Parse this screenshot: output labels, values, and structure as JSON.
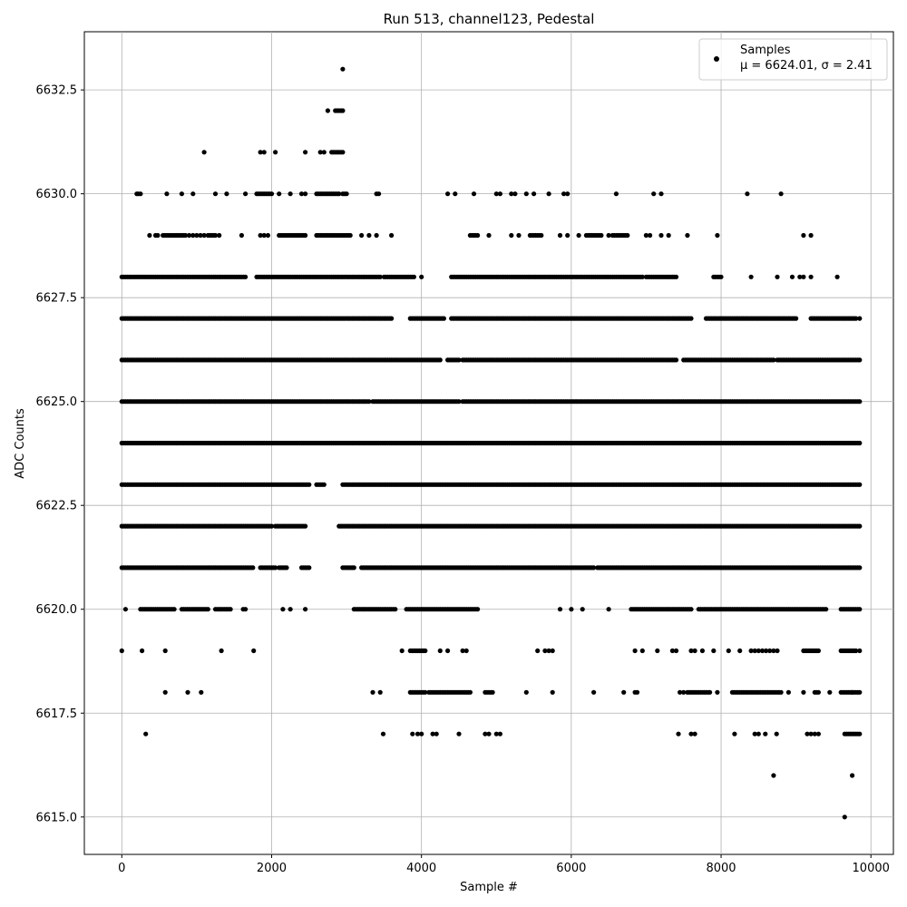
{
  "chart_data": {
    "type": "scatter",
    "title": "Run 513, channel123, Pedestal",
    "xlabel": "Sample #",
    "ylabel": "ADC Counts",
    "xlim": [
      -500,
      10300
    ],
    "ylim": [
      6614.1,
      6633.9
    ],
    "x_ticks": [
      0,
      2000,
      4000,
      6000,
      8000,
      10000
    ],
    "x_tick_labels": [
      "0",
      "2000",
      "4000",
      "6000",
      "8000",
      "10000"
    ],
    "y_ticks": [
      6615.0,
      6617.5,
      6620.0,
      6622.5,
      6625.0,
      6627.5,
      6630.0,
      6632.5
    ],
    "y_tick_labels": [
      "6615.0",
      "6617.5",
      "6620.0",
      "6622.5",
      "6625.0",
      "6627.5",
      "6630.0",
      "6632.5"
    ],
    "grid": true,
    "legend": {
      "position": "top-right",
      "entries": [
        "Samples",
        "μ = 6624.01, σ = 2.41"
      ]
    },
    "series": [
      {
        "name": "Samples",
        "color": "#000000",
        "levels": [
          {
            "y": 6628,
            "segments": [
              [
                0,
                1650
              ],
              [
                1800,
                3450
              ],
              [
                3500,
                3900
              ],
              [
                4400,
                6950
              ],
              [
                7000,
                7400
              ],
              [
                7900,
                8000
              ]
            ],
            "points": [
              4000,
              8400,
              8750,
              8950,
              9050,
              9100,
              9200,
              9550
            ]
          },
          {
            "y": 6627,
            "segments": [
              [
                0,
                3600
              ],
              [
                3850,
                4300
              ],
              [
                4400,
                7600
              ],
              [
                7800,
                9000
              ],
              [
                9200,
                9800
              ]
            ],
            "points": [
              9850
            ]
          },
          {
            "y": 6626,
            "segments": [
              [
                0,
                4250
              ],
              [
                4350,
                4500
              ],
              [
                4550,
                7400
              ],
              [
                7500,
                8700
              ],
              [
                8750,
                9850
              ]
            ],
            "points": []
          },
          {
            "y": 6625,
            "segments": [
              [
                0,
                3300
              ],
              [
                3350,
                4500
              ],
              [
                4550,
                9850
              ]
            ],
            "points": []
          },
          {
            "y": 6624,
            "segments": [
              [
                0,
                9850
              ]
            ],
            "points": []
          },
          {
            "y": 6623,
            "segments": [
              [
                0,
                2500
              ],
              [
                2600,
                2700
              ],
              [
                2950,
                9850
              ]
            ],
            "points": []
          },
          {
            "y": 6622,
            "segments": [
              [
                0,
                2000
              ],
              [
                2050,
                2450
              ],
              [
                2900,
                9850
              ]
            ],
            "points": []
          },
          {
            "y": 6621,
            "segments": [
              [
                0,
                1750
              ],
              [
                1850,
                2050
              ],
              [
                2100,
                2200
              ],
              [
                2400,
                2500
              ],
              [
                2950,
                3100
              ],
              [
                3200,
                6300
              ],
              [
                6350,
                9850
              ]
            ],
            "points": []
          },
          {
            "y": 6620,
            "segments": [
              [
                250,
                700
              ],
              [
                800,
                1150
              ],
              [
                1250,
                1450
              ],
              [
                3100,
                3650
              ],
              [
                3800,
                4750
              ],
              [
                6800,
                7600
              ],
              [
                7700,
                9400
              ],
              [
                9600,
                9850
              ]
            ],
            "points": [
              50,
              1620,
              1650,
              2150,
              2250,
              2450,
              5850,
              6000,
              6150,
              6500
            ]
          },
          {
            "y": 6619,
            "segments": [
              [
                3850,
                4050
              ],
              [
                9100,
                9300
              ],
              [
                9600,
                9800
              ]
            ],
            "points": [
              0,
              270,
              580,
              1330,
              1760,
              3740,
              4250,
              4350,
              4550,
              4600,
              5550,
              5650,
              5700,
              5750,
              6850,
              6950,
              7150,
              7350,
              7400,
              7600,
              7650,
              7750,
              7900,
              8100,
              8250,
              8400,
              8450,
              8500,
              8550,
              8600,
              8650,
              8700,
              8750,
              9850
            ]
          },
          {
            "y": 6618,
            "segments": [
              [
                3850,
                4050
              ],
              [
                4100,
                4650
              ],
              [
                4850,
                4950
              ],
              [
                7550,
                7850
              ],
              [
                8150,
                8800
              ],
              [
                9250,
                9300
              ],
              [
                9600,
                9850
              ]
            ],
            "points": [
              580,
              880,
              1060,
              3350,
              3450,
              5400,
              5750,
              6300,
              6700,
              6850,
              6880,
              7450,
              7500,
              7950,
              8900,
              9100,
              9450,
              9750
            ]
          },
          {
            "y": 6617,
            "segments": [
              [
                9650,
                9850
              ]
            ],
            "points": [
              320,
              3490,
              3880,
              3950,
              4000,
              4150,
              4200,
              4500,
              4850,
              4900,
              5000,
              5050,
              7430,
              7600,
              7650,
              8180,
              8450,
              8500,
              8590,
              8740,
              9150,
              9200,
              9250,
              9300
            ]
          },
          {
            "y": 6629,
            "segments": [
              [
                550,
                850
              ],
              [
                1150,
                1250
              ],
              [
                2100,
                2450
              ],
              [
                2600,
                3050
              ],
              [
                4650,
                4750
              ],
              [
                5450,
                5600
              ],
              [
                6200,
                6400
              ],
              [
                6550,
                6750
              ]
            ],
            "points": [
              370,
              450,
              480,
              900,
              950,
              1000,
              1050,
              1100,
              1300,
              1600,
              1850,
              1900,
              1950,
              3200,
              3300,
              3400,
              3600,
              4900,
              5200,
              5300,
              5850,
              5950,
              6100,
              6500,
              7000,
              7050,
              7200,
              7300,
              7550,
              7950,
              9100,
              9200
            ]
          },
          {
            "y": 6630,
            "segments": [
              [
                1800,
                2000
              ],
              [
                2600,
                2900
              ],
              [
                2950,
                3000
              ]
            ],
            "points": [
              200,
              220,
              250,
              600,
              800,
              950,
              1250,
              1400,
              1650,
              2100,
              2250,
              2400,
              2450,
              3400,
              3430,
              4350,
              4450,
              4700,
              5000,
              5050,
              5200,
              5250,
              5400,
              5500,
              5700,
              5900,
              5950,
              6600,
              7100,
              7200,
              8350,
              8800
            ]
          },
          {
            "y": 6631,
            "segments": [
              [
                2800,
                2950
              ]
            ],
            "points": [
              1100,
              1850,
              1900,
              2050,
              2450,
              2650,
              2700
            ]
          },
          {
            "y": 6632,
            "segments": [
              [
                2850,
                2950
              ]
            ],
            "points": [
              2750
            ]
          },
          {
            "y": 6633,
            "segments": [],
            "points": [
              2950
            ]
          },
          {
            "y": 6616,
            "segments": [],
            "points": [
              8700,
              9750
            ]
          },
          {
            "y": 6615,
            "segments": [],
            "points": [
              9650
            ]
          }
        ]
      }
    ]
  }
}
